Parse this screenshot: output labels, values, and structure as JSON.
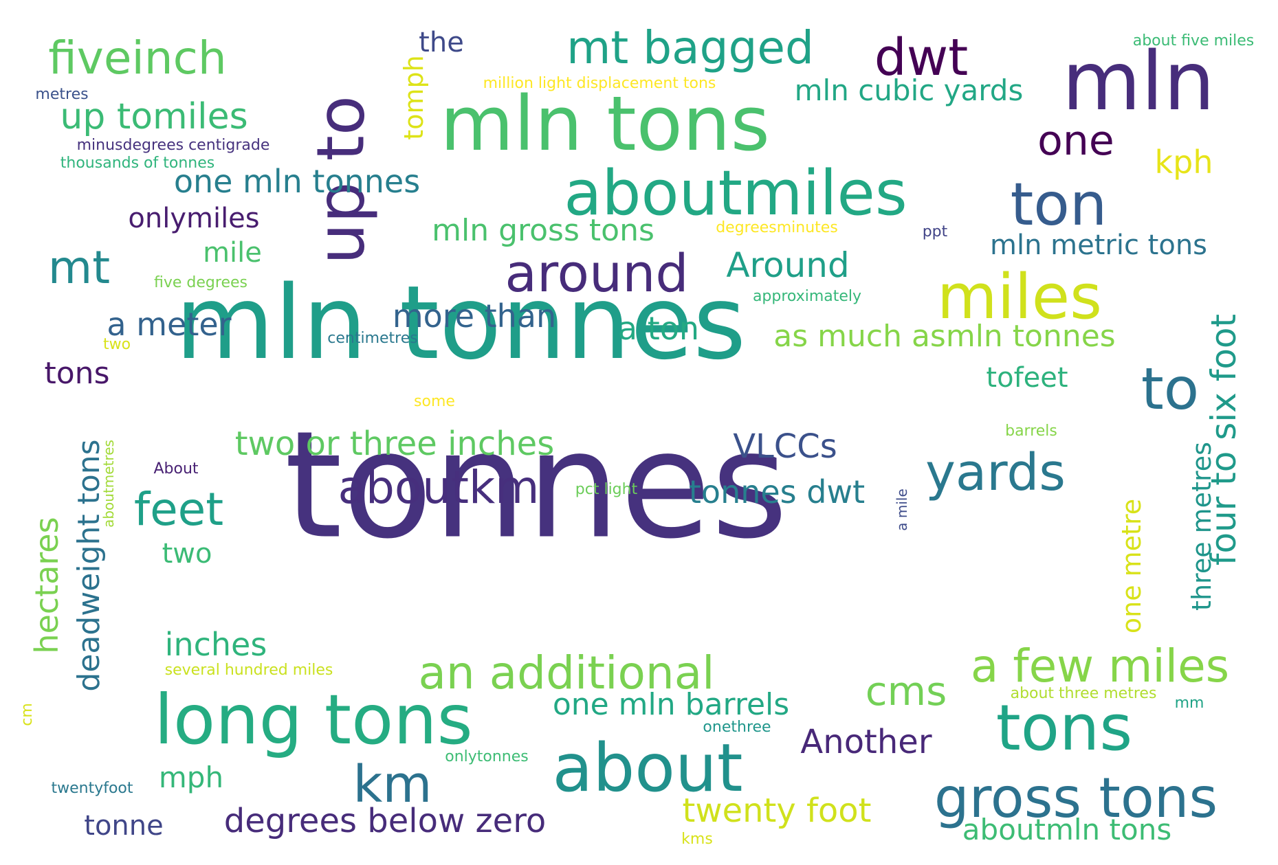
{
  "words": [
    {
      "text": "tonnes",
      "color": "#46327e"
    },
    {
      "text": "mln tonnes",
      "color": "#1f9e89"
    },
    {
      "text": "mln tons",
      "color": "#4ac16d"
    },
    {
      "text": "mln",
      "color": "#472d7b"
    },
    {
      "text": "up to",
      "color": "#472d7b",
      "vertical": true
    },
    {
      "text": "aboutmiles",
      "color": "#22a884"
    },
    {
      "text": "miles",
      "color": "#d0e11c"
    },
    {
      "text": "ton",
      "color": "#365c8d"
    },
    {
      "text": "long tons",
      "color": "#25ac82"
    },
    {
      "text": "about",
      "color": "#21918c"
    },
    {
      "text": "tons",
      "color": "#20a486"
    },
    {
      "text": "gross tons",
      "color": "#2c728e"
    },
    {
      "text": "to",
      "color": "#2c728e"
    },
    {
      "text": "dwt",
      "color": "#440154"
    },
    {
      "text": "mt bagged",
      "color": "#1fa287"
    },
    {
      "text": "fiveinch",
      "color": "#5ec962"
    },
    {
      "text": "around",
      "color": "#472c7a"
    },
    {
      "text": "yards",
      "color": "#2a788e"
    },
    {
      "text": "an additional",
      "color": "#7ad151"
    },
    {
      "text": "a few miles",
      "color": "#86d549"
    },
    {
      "text": "km",
      "color": "#2c728e"
    },
    {
      "text": "mt",
      "color": "#23898e"
    },
    {
      "text": "one",
      "color": "#440154"
    },
    {
      "text": "aboutkm",
      "color": "#472f7d"
    },
    {
      "text": "feet",
      "color": "#1fa088"
    },
    {
      "text": "four to six foot",
      "color": "#1f9a8a",
      "vertical": true
    },
    {
      "text": "degrees below zero",
      "color": "#472c7a"
    },
    {
      "text": "deadweight tons",
      "color": "#2c728e",
      "vertical": true
    },
    {
      "text": "cms",
      "color": "#73d056"
    },
    {
      "text": "two or three inches",
      "color": "#5ec962"
    },
    {
      "text": "up tomiles",
      "color": "#3bbb75"
    },
    {
      "text": "twenty foot",
      "color": "#d0e11c"
    },
    {
      "text": "one mln tonnes",
      "color": "#277f8e"
    },
    {
      "text": "mln cubic yards",
      "color": "#22a785"
    },
    {
      "text": "as much asmln tonnes",
      "color": "#86d549"
    },
    {
      "text": "aboutmln tons",
      "color": "#3dbc74"
    },
    {
      "text": "mln gross tons",
      "color": "#4ac16d"
    },
    {
      "text": "one mln barrels",
      "color": "#22a884"
    },
    {
      "text": "hectares",
      "color": "#7ad151"
    },
    {
      "text": "mln metric tons",
      "color": "#2c738e"
    },
    {
      "text": "more than",
      "color": "#33638d"
    },
    {
      "text": "Around",
      "color": "#1f9f88"
    },
    {
      "text": "a meter",
      "color": "#33628d"
    },
    {
      "text": "a ton",
      "color": "#23a983"
    },
    {
      "text": "tonnes dwt",
      "color": "#277f8e"
    },
    {
      "text": "VLCCs",
      "color": "#3b518b"
    },
    {
      "text": "Another",
      "color": "#482878"
    },
    {
      "text": "inches",
      "color": "#2fb47c"
    },
    {
      "text": "kph",
      "color": "#e7e419"
    },
    {
      "text": "tofeet",
      "color": "#2db27d"
    },
    {
      "text": "tons",
      "color": "#481769"
    },
    {
      "text": "onlymiles",
      "color": "#481d6f"
    },
    {
      "text": "three metres",
      "color": "#1f958b",
      "vertical": true
    },
    {
      "text": "tonne",
      "color": "#404688"
    },
    {
      "text": "mph",
      "color": "#35b779"
    },
    {
      "text": "mile",
      "color": "#4ac16d"
    },
    {
      "text": "two",
      "color": "#3bbb75"
    },
    {
      "text": "one metre",
      "color": "#d8e219",
      "vertical": true
    },
    {
      "text": "the",
      "color": "#3e4989"
    },
    {
      "text": "tomph",
      "color": "#dde318",
      "vertical": true
    },
    {
      "text": "aboutmetres",
      "color": "#a2da37",
      "vertical": true
    },
    {
      "text": "a mile",
      "color": "#3e4c8a",
      "vertical": true
    },
    {
      "text": "about five miles",
      "color": "#3bbb75"
    },
    {
      "text": "million light displacement tons",
      "color": "#fde725"
    },
    {
      "text": "minusdegrees centigrade",
      "color": "#46327e"
    },
    {
      "text": "thousands of tonnes",
      "color": "#2fb47c"
    },
    {
      "text": "metres",
      "color": "#3b528b"
    },
    {
      "text": "degreesminutes",
      "color": "#fde725"
    },
    {
      "text": "ppt",
      "color": "#414487"
    },
    {
      "text": "five degrees",
      "color": "#7ad151"
    },
    {
      "text": "approximately",
      "color": "#35b779"
    },
    {
      "text": "centimetres",
      "color": "#2a788e"
    },
    {
      "text": "two",
      "color": "#d8e219"
    },
    {
      "text": "some",
      "color": "#fde725"
    },
    {
      "text": "barrels",
      "color": "#86d549"
    },
    {
      "text": "About",
      "color": "#482173"
    },
    {
      "text": "pct light",
      "color": "#6ccd5a"
    },
    {
      "text": "several hundred miles",
      "color": "#cae11f"
    },
    {
      "text": "about three metres",
      "color": "#b0dd2f"
    },
    {
      "text": "mm",
      "color": "#20a386"
    },
    {
      "text": "cm",
      "color": "#d8e219",
      "vertical": true
    },
    {
      "text": "onethree",
      "color": "#1f968b"
    },
    {
      "text": "onlytonnes",
      "color": "#3dbc74"
    },
    {
      "text": "twentyfoot",
      "color": "#2a788e"
    },
    {
      "text": "kms",
      "color": "#d8e219"
    }
  ]
}
